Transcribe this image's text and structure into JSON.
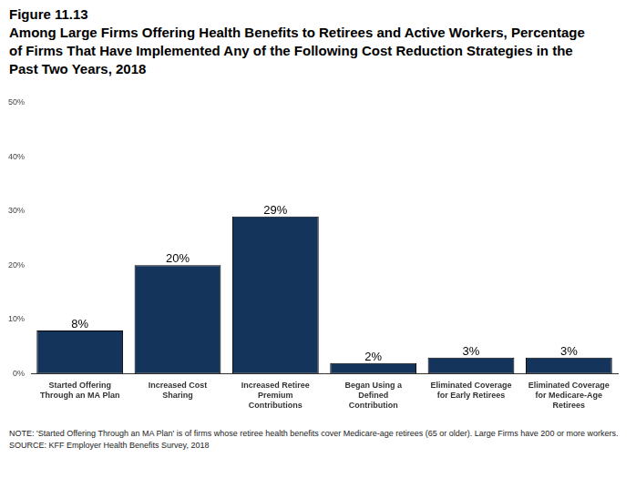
{
  "chart_data": {
    "type": "bar",
    "title": "Figure 11.13",
    "subtitle": "Among Large Firms Offering Health Benefits to Retirees and Active Workers, Percentage of Firms That Have Implemented Any of the Following Cost Reduction Strategies in the Past Two Years, 2018",
    "categories": [
      [
        "Started Offering",
        "Through an MA Plan"
      ],
      [
        "Increased Cost",
        "Sharing"
      ],
      [
        "Increased Retiree",
        "Premium",
        "Contributions"
      ],
      [
        "Began Using a",
        "Defined",
        "Contribution"
      ],
      [
        "Eliminated Coverage",
        "for Early Retirees"
      ],
      [
        "Eliminated Coverage",
        "for Medicare-Age",
        "Retirees"
      ]
    ],
    "values": [
      8,
      20,
      29,
      2,
      3,
      3
    ],
    "value_labels": [
      "8%",
      "20%",
      "29%",
      "2%",
      "3%",
      "3%"
    ],
    "color": "#15345b",
    "ylim": [
      0,
      50
    ],
    "yticks": [
      {
        "value": 0,
        "label": "0%"
      },
      {
        "value": 10,
        "label": "10%"
      },
      {
        "value": 20,
        "label": "20%"
      },
      {
        "value": 30,
        "label": "30%"
      },
      {
        "value": 40,
        "label": "40%"
      },
      {
        "value": 50,
        "label": "50%"
      }
    ],
    "grid": false,
    "data_labels": true,
    "note": "NOTE: 'Started Offering Through an MA Plan' is of firms whose retiree health benefits cover Medicare-age retirees (65 or older). Large Firms have 200 or more workers.",
    "source": "SOURCE: KFF Employer Health Benefits Survey, 2018"
  }
}
